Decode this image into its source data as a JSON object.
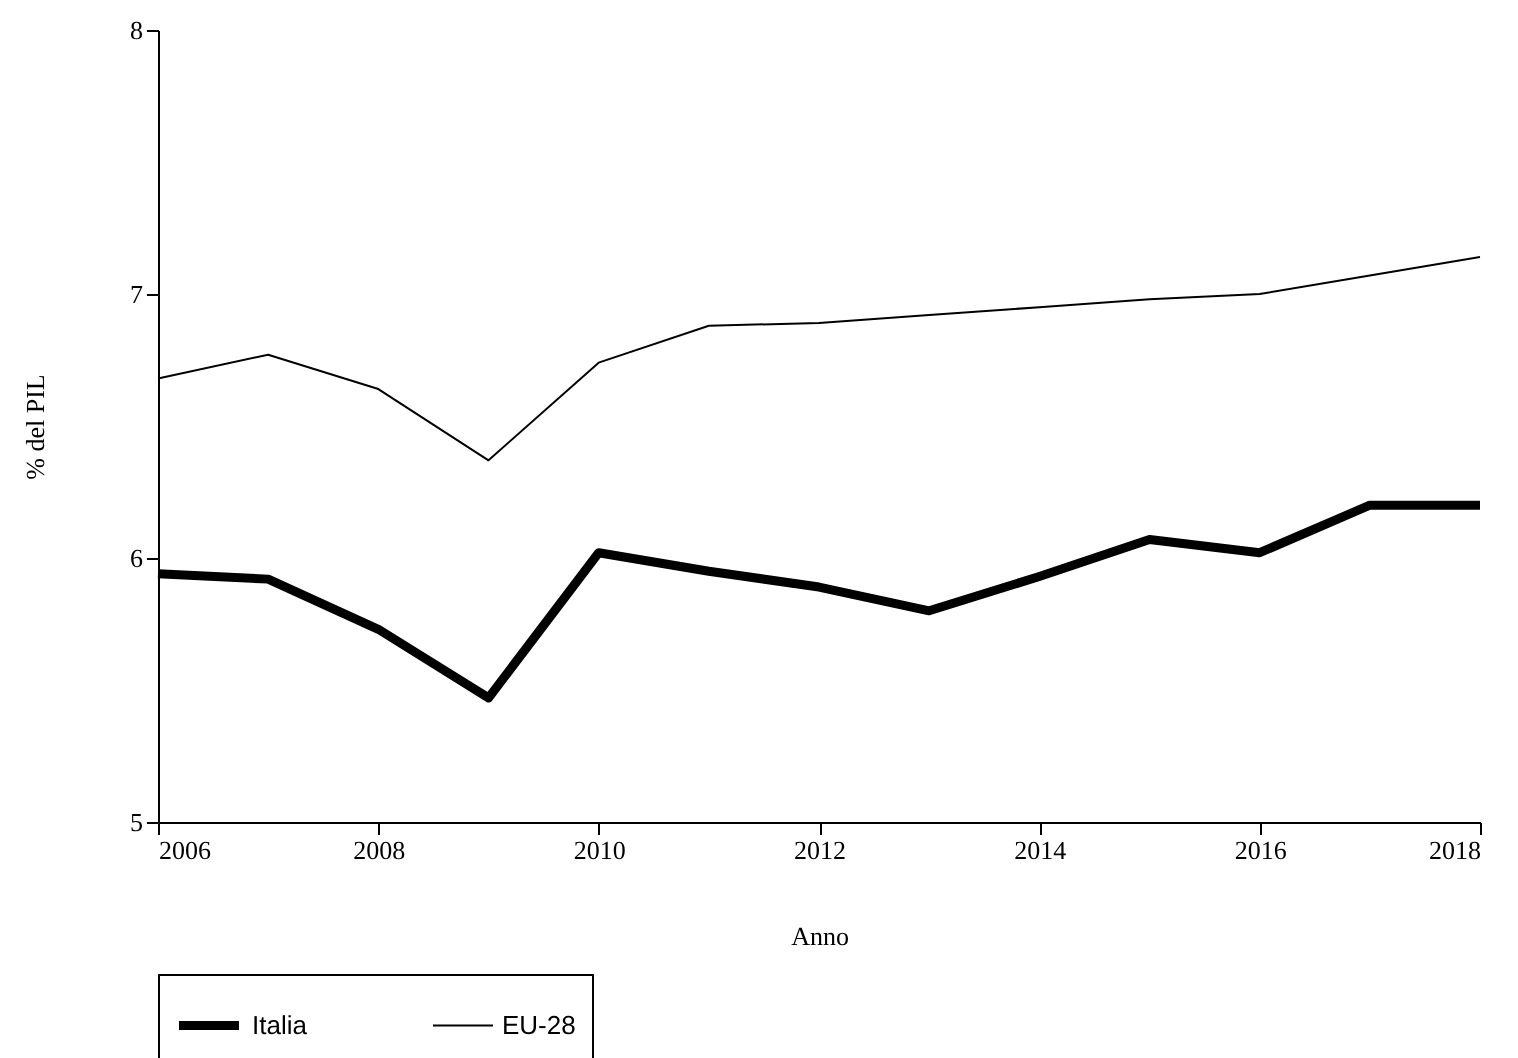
{
  "chart_data": {
    "type": "line",
    "xlabel": "Anno",
    "ylabel": "% del PIL",
    "x": [
      2006,
      2007,
      2008,
      2009,
      2010,
      2011,
      2012,
      2013,
      2014,
      2015,
      2016,
      2017,
      2018
    ],
    "series": [
      {
        "name": "Italia",
        "color": "#000000",
        "values": [
          5.94,
          5.92,
          5.73,
          5.47,
          6.02,
          5.95,
          5.89,
          5.8,
          5.93,
          6.07,
          6.02,
          6.2,
          6.2
        ]
      },
      {
        "name": "EU-28",
        "color": "#000000",
        "values": [
          6.68,
          6.77,
          6.64,
          6.37,
          6.74,
          6.88,
          6.89,
          6.92,
          6.95,
          6.98,
          7.0,
          7.07,
          7.14
        ]
      }
    ],
    "xlim": [
      2006,
      2018
    ],
    "xticks": [
      2006,
      2008,
      2010,
      2012,
      2014,
      2016,
      2018
    ],
    "ylim": [
      5,
      8
    ],
    "yticks": [
      5,
      6,
      7,
      8
    ],
    "grid": false,
    "legend": "bottom",
    "marker": "none",
    "line_style": "solid"
  }
}
